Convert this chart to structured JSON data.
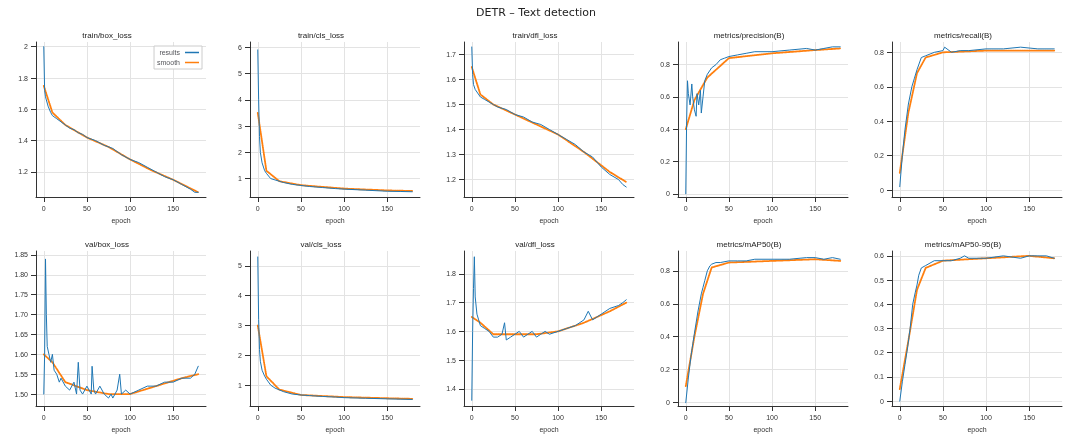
{
  "chart_data": [
    {
      "type": "other",
      "title": "DETR – Text detection"
    },
    {
      "type": "line",
      "title": "train/box_loss",
      "xlabel": "epoch",
      "xlim": [
        -9,
        188
      ],
      "xticks": [
        0,
        50,
        100,
        150
      ],
      "ylim": [
        1.04,
        2.03
      ],
      "yticks": [
        1.2,
        1.4,
        1.6,
        1.8,
        2.0
      ],
      "grid": true,
      "legend": "top right",
      "marker": "none",
      "series": [
        {
          "name": "results",
          "color": "#1f77b4",
          "line_style": "solid",
          "x": [
            0,
            1,
            2,
            3,
            5,
            8,
            10,
            15,
            20,
            25,
            30,
            35,
            40,
            45,
            50,
            55,
            60,
            70,
            80,
            90,
            100,
            110,
            120,
            130,
            140,
            150,
            160,
            170,
            175,
            179
          ],
          "values": [
            2.0,
            1.72,
            1.68,
            1.66,
            1.62,
            1.58,
            1.56,
            1.54,
            1.52,
            1.5,
            1.48,
            1.47,
            1.45,
            1.44,
            1.42,
            1.41,
            1.4,
            1.37,
            1.35,
            1.31,
            1.28,
            1.26,
            1.23,
            1.2,
            1.17,
            1.15,
            1.12,
            1.09,
            1.07,
            1.07
          ]
        },
        {
          "name": "smooth",
          "color": "#ff7f0e",
          "line_style": "dotted",
          "x": [
            0,
            10,
            25,
            50,
            75,
            100,
            125,
            150,
            179
          ],
          "values": [
            1.75,
            1.58,
            1.5,
            1.42,
            1.36,
            1.28,
            1.21,
            1.15,
            1.07
          ]
        }
      ]
    },
    {
      "type": "line",
      "title": "train/cls_loss",
      "xlabel": "epoch",
      "xlim": [
        -9,
        188
      ],
      "xticks": [
        0,
        50,
        100,
        150
      ],
      "ylim": [
        0.3,
        6.2
      ],
      "yticks": [
        1,
        2,
        3,
        4,
        5,
        6
      ],
      "grid": true,
      "marker": "none",
      "series": [
        {
          "color": "#1f77b4",
          "line_style": "solid",
          "x": [
            0,
            1,
            2,
            3,
            5,
            8,
            10,
            15,
            20,
            30,
            40,
            50,
            60,
            75,
            90,
            100,
            125,
            150,
            165,
            179
          ],
          "values": [
            5.9,
            4.0,
            2.6,
            2.0,
            1.6,
            1.3,
            1.2,
            1.0,
            0.95,
            0.85,
            0.78,
            0.74,
            0.7,
            0.66,
            0.62,
            0.6,
            0.56,
            0.52,
            0.51,
            0.5
          ]
        },
        {
          "color": "#ff7f0e",
          "line_style": "dotted",
          "x": [
            0,
            10,
            25,
            50,
            100,
            150,
            179
          ],
          "values": [
            3.5,
            1.3,
            0.9,
            0.75,
            0.62,
            0.55,
            0.53
          ]
        }
      ]
    },
    {
      "type": "line",
      "title": "train/dfl_loss",
      "xlabel": "epoch",
      "xlim": [
        -9,
        188
      ],
      "xticks": [
        0,
        50,
        100,
        150
      ],
      "ylim": [
        1.13,
        1.75
      ],
      "yticks": [
        1.2,
        1.3,
        1.4,
        1.5,
        1.6,
        1.7
      ],
      "grid": true,
      "marker": "none",
      "series": [
        {
          "color": "#1f77b4",
          "line_style": "solid",
          "x": [
            0,
            1,
            2,
            4,
            6,
            10,
            15,
            20,
            25,
            30,
            40,
            50,
            60,
            70,
            80,
            90,
            100,
            110,
            120,
            130,
            140,
            150,
            160,
            170,
            175,
            179
          ],
          "values": [
            1.73,
            1.62,
            1.58,
            1.56,
            1.55,
            1.53,
            1.52,
            1.51,
            1.5,
            1.49,
            1.48,
            1.46,
            1.45,
            1.43,
            1.42,
            1.4,
            1.38,
            1.36,
            1.34,
            1.31,
            1.29,
            1.25,
            1.22,
            1.2,
            1.18,
            1.17
          ]
        },
        {
          "color": "#ff7f0e",
          "line_style": "dotted",
          "x": [
            0,
            10,
            25,
            50,
            75,
            100,
            130,
            160,
            179
          ],
          "values": [
            1.65,
            1.54,
            1.5,
            1.46,
            1.42,
            1.38,
            1.31,
            1.23,
            1.19
          ]
        }
      ]
    },
    {
      "type": "line",
      "title": "metrics/precision(B)",
      "xlabel": "epoch",
      "xlim": [
        -9,
        188
      ],
      "xticks": [
        0,
        50,
        100,
        150
      ],
      "ylim": [
        -0.02,
        0.94
      ],
      "yticks": [
        0.0,
        0.2,
        0.4,
        0.6,
        0.8
      ],
      "grid": true,
      "marker": "none",
      "series": [
        {
          "color": "#1f77b4",
          "line_style": "solid",
          "x": [
            0,
            1,
            2,
            3,
            5,
            7,
            8,
            10,
            12,
            13,
            15,
            17,
            18,
            20,
            22,
            25,
            30,
            35,
            40,
            45,
            50,
            60,
            70,
            80,
            100,
            120,
            140,
            150,
            160,
            170,
            179
          ],
          "values": [
            0.0,
            0.45,
            0.7,
            0.62,
            0.55,
            0.68,
            0.6,
            0.52,
            0.48,
            0.62,
            0.55,
            0.64,
            0.5,
            0.6,
            0.7,
            0.74,
            0.78,
            0.8,
            0.83,
            0.84,
            0.85,
            0.86,
            0.87,
            0.88,
            0.88,
            0.89,
            0.9,
            0.89,
            0.9,
            0.91,
            0.91
          ]
        },
        {
          "color": "#ff7f0e",
          "line_style": "dotted",
          "x": [
            0,
            10,
            25,
            50,
            100,
            150,
            179
          ],
          "values": [
            0.4,
            0.58,
            0.72,
            0.84,
            0.87,
            0.89,
            0.9
          ]
        }
      ]
    },
    {
      "type": "line",
      "title": "metrics/recall(B)",
      "xlabel": "epoch",
      "xlim": [
        -9,
        188
      ],
      "xticks": [
        0,
        50,
        100,
        150
      ],
      "ylim": [
        -0.04,
        0.86
      ],
      "yticks": [
        0.0,
        0.2,
        0.4,
        0.6,
        0.8
      ],
      "grid": true,
      "marker": "none",
      "series": [
        {
          "color": "#1f77b4",
          "line_style": "solid",
          "x": [
            0,
            3,
            6,
            10,
            14,
            17,
            20,
            25,
            30,
            40,
            50,
            52,
            60,
            70,
            80,
            100,
            120,
            140,
            160,
            179
          ],
          "values": [
            0.02,
            0.2,
            0.35,
            0.5,
            0.6,
            0.65,
            0.7,
            0.77,
            0.78,
            0.8,
            0.81,
            0.83,
            0.8,
            0.81,
            0.81,
            0.82,
            0.82,
            0.83,
            0.82,
            0.82
          ]
        },
        {
          "color": "#ff7f0e",
          "line_style": "dotted",
          "x": [
            0,
            10,
            20,
            30,
            50,
            100,
            150,
            179
          ],
          "values": [
            0.1,
            0.45,
            0.68,
            0.77,
            0.8,
            0.81,
            0.81,
            0.81
          ]
        }
      ]
    },
    {
      "type": "line",
      "title": "val/box_loss",
      "xlabel": "epoch",
      "xlim": [
        -9,
        188
      ],
      "xticks": [
        0,
        50,
        100,
        150
      ],
      "ylim": [
        1.47,
        1.86
      ],
      "yticks": [
        {
          "value": 1.5,
          "label": "1.50"
        },
        1.55,
        {
          "value": 1.6,
          "label": "1.60"
        },
        1.65,
        {
          "value": 1.7,
          "label": "1.70"
        },
        1.75,
        {
          "value": 1.8,
          "label": "1.80"
        },
        1.85
      ],
      "grid": true,
      "marker": "none",
      "series": [
        {
          "color": "#1f77b4",
          "line_style": "solid",
          "x": [
            0,
            1,
            2,
            3,
            4,
            6,
            8,
            10,
            12,
            15,
            18,
            20,
            25,
            30,
            35,
            38,
            40,
            42,
            45,
            50,
            55,
            56,
            58,
            60,
            65,
            70,
            75,
            78,
            80,
            85,
            88,
            90,
            95,
            100,
            110,
            120,
            130,
            140,
            150,
            160,
            170,
            175,
            179
          ],
          "values": [
            1.5,
            1.6,
            1.84,
            1.7,
            1.62,
            1.6,
            1.58,
            1.6,
            1.56,
            1.55,
            1.53,
            1.54,
            1.52,
            1.51,
            1.53,
            1.5,
            1.58,
            1.51,
            1.5,
            1.52,
            1.5,
            1.57,
            1.51,
            1.5,
            1.52,
            1.5,
            1.49,
            1.5,
            1.49,
            1.51,
            1.55,
            1.5,
            1.51,
            1.5,
            1.51,
            1.52,
            1.52,
            1.53,
            1.53,
            1.54,
            1.54,
            1.55,
            1.57
          ]
        },
        {
          "color": "#ff7f0e",
          "line_style": "dotted",
          "x": [
            0,
            10,
            25,
            50,
            75,
            100,
            130,
            160,
            179
          ],
          "values": [
            1.6,
            1.58,
            1.53,
            1.51,
            1.5,
            1.5,
            1.52,
            1.54,
            1.55
          ]
        }
      ]
    },
    {
      "type": "line",
      "title": "val/cls_loss",
      "xlabel": "epoch",
      "xlim": [
        -9,
        188
      ],
      "xticks": [
        0,
        50,
        100,
        150
      ],
      "ylim": [
        0.3,
        5.5
      ],
      "yticks": [
        1,
        2,
        3,
        4,
        5
      ],
      "grid": true,
      "marker": "none",
      "series": [
        {
          "color": "#1f77b4",
          "line_style": "solid",
          "x": [
            0,
            1,
            2,
            3,
            5,
            8,
            10,
            15,
            20,
            30,
            40,
            50,
            60,
            75,
            90,
            100,
            125,
            150,
            165,
            179
          ],
          "values": [
            5.3,
            3.2,
            2.2,
            1.8,
            1.5,
            1.3,
            1.2,
            1.0,
            0.9,
            0.78,
            0.7,
            0.67,
            0.65,
            0.62,
            0.6,
            0.58,
            0.56,
            0.54,
            0.53,
            0.52
          ]
        },
        {
          "color": "#ff7f0e",
          "line_style": "dotted",
          "x": [
            0,
            10,
            25,
            50,
            100,
            150,
            179
          ],
          "values": [
            3.0,
            1.3,
            0.85,
            0.67,
            0.6,
            0.56,
            0.54
          ]
        }
      ]
    },
    {
      "type": "line",
      "title": "val/dfl_loss",
      "xlabel": "epoch",
      "xlim": [
        -9,
        188
      ],
      "xticks": [
        0,
        50,
        100,
        150
      ],
      "ylim": [
        1.34,
        1.88
      ],
      "yticks": [
        1.4,
        1.5,
        1.6,
        1.7,
        1.8
      ],
      "grid": true,
      "marker": "none",
      "series": [
        {
          "color": "#1f77b4",
          "line_style": "solid",
          "x": [
            0,
            1,
            2,
            3,
            4,
            6,
            8,
            10,
            15,
            20,
            25,
            30,
            35,
            38,
            40,
            45,
            50,
            55,
            60,
            65,
            70,
            75,
            80,
            85,
            90,
            100,
            110,
            120,
            130,
            135,
            140,
            150,
            160,
            170,
            175,
            179
          ],
          "values": [
            1.36,
            1.6,
            1.75,
            1.86,
            1.72,
            1.66,
            1.64,
            1.62,
            1.61,
            1.6,
            1.58,
            1.58,
            1.59,
            1.63,
            1.57,
            1.58,
            1.59,
            1.6,
            1.58,
            1.59,
            1.6,
            1.58,
            1.59,
            1.6,
            1.59,
            1.6,
            1.61,
            1.62,
            1.64,
            1.67,
            1.64,
            1.66,
            1.68,
            1.69,
            1.7,
            1.71
          ]
        },
        {
          "color": "#ff7f0e",
          "line_style": "dotted",
          "x": [
            0,
            10,
            25,
            50,
            75,
            100,
            130,
            160,
            179
          ],
          "values": [
            1.65,
            1.63,
            1.59,
            1.59,
            1.59,
            1.6,
            1.63,
            1.67,
            1.7
          ]
        }
      ]
    },
    {
      "type": "line",
      "title": "metrics/mAP50(B)",
      "xlabel": "epoch",
      "xlim": [
        -9,
        188
      ],
      "xticks": [
        0,
        50,
        100,
        150
      ],
      "ylim": [
        -0.02,
        0.92
      ],
      "yticks": [
        0.0,
        0.2,
        0.4,
        0.6,
        0.8
      ],
      "grid": true,
      "marker": "none",
      "series": [
        {
          "color": "#1f77b4",
          "line_style": "solid",
          "x": [
            0,
            3,
            6,
            10,
            14,
            18,
            20,
            22,
            25,
            28,
            30,
            35,
            40,
            50,
            60,
            70,
            80,
            100,
            120,
            140,
            150,
            160,
            170,
            179
          ],
          "values": [
            0.0,
            0.15,
            0.28,
            0.42,
            0.55,
            0.66,
            0.7,
            0.74,
            0.8,
            0.83,
            0.84,
            0.85,
            0.85,
            0.86,
            0.86,
            0.86,
            0.87,
            0.87,
            0.87,
            0.88,
            0.88,
            0.87,
            0.88,
            0.87
          ]
        },
        {
          "color": "#ff7f0e",
          "line_style": "dotted",
          "x": [
            0,
            10,
            20,
            30,
            50,
            100,
            150,
            179
          ],
          "values": [
            0.1,
            0.4,
            0.66,
            0.82,
            0.85,
            0.86,
            0.87,
            0.86
          ]
        }
      ]
    },
    {
      "type": "line",
      "title": "metrics/mAP50-95(B)",
      "xlabel": "epoch",
      "xlim": [
        -9,
        188
      ],
      "xticks": [
        0,
        50,
        100,
        150
      ],
      "ylim": [
        -0.02,
        0.62
      ],
      "yticks": [
        0.0,
        0.1,
        0.2,
        0.3,
        0.4,
        0.5,
        0.6
      ],
      "grid": true,
      "marker": "none",
      "series": [
        {
          "color": "#1f77b4",
          "line_style": "solid",
          "x": [
            0,
            3,
            6,
            9,
            12,
            15,
            18,
            20,
            22,
            25,
            30,
            35,
            40,
            50,
            60,
            70,
            75,
            80,
            100,
            120,
            140,
            150,
            160,
            170,
            179
          ],
          "values": [
            0.0,
            0.08,
            0.15,
            0.22,
            0.3,
            0.4,
            0.45,
            0.48,
            0.52,
            0.55,
            0.56,
            0.57,
            0.58,
            0.58,
            0.58,
            0.59,
            0.6,
            0.59,
            0.59,
            0.6,
            0.59,
            0.6,
            0.6,
            0.6,
            0.59
          ]
        },
        {
          "color": "#ff7f0e",
          "line_style": "dotted",
          "x": [
            0,
            10,
            20,
            30,
            50,
            100,
            150,
            179
          ],
          "values": [
            0.05,
            0.25,
            0.46,
            0.55,
            0.58,
            0.59,
            0.6,
            0.59
          ]
        }
      ]
    }
  ]
}
